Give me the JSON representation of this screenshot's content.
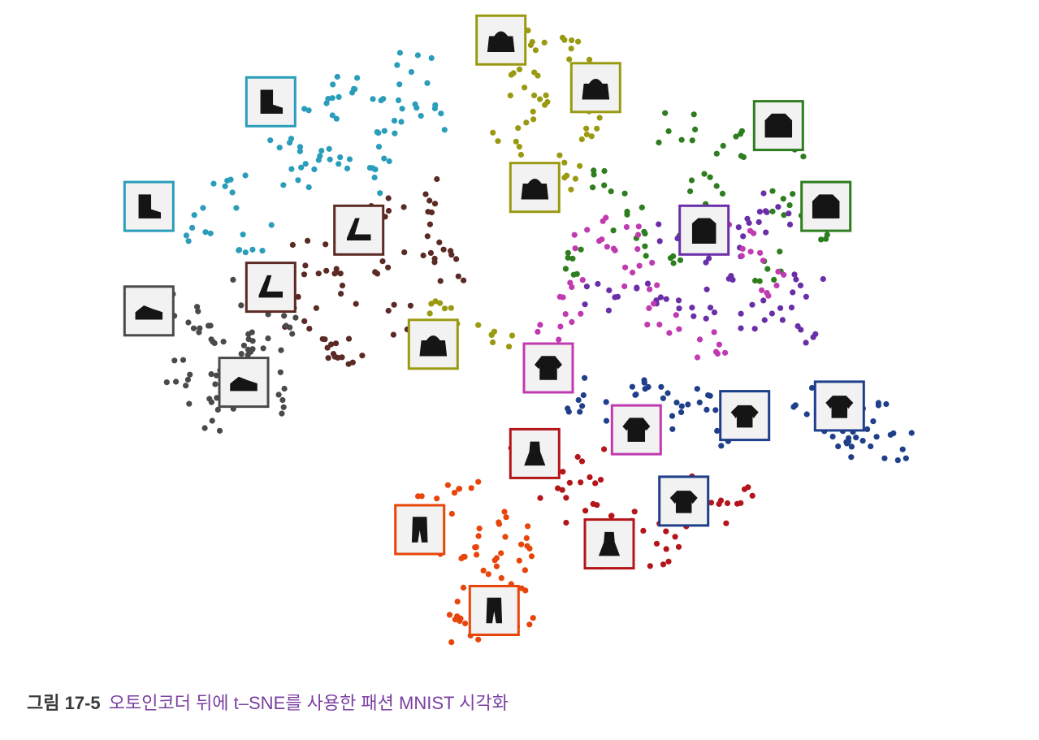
{
  "caption": {
    "figure_number": "그림 17-5",
    "text": "오토인코더 뒤에 t–SNE를 사용한 패션 MNIST 시각화"
  },
  "chart_data": {
    "type": "scatter",
    "title": "",
    "xlabel": "",
    "ylabel": "",
    "grid": false,
    "axes_visible": false,
    "series": [
      {
        "name": "",
        "icon": "ankle-boot-icon",
        "color": "#2a9dbb",
        "points": [
          [
            3.3,
            10.5
          ],
          [
            2.4,
            9.4
          ],
          [
            3.9,
            10.1
          ],
          [
            1.6,
            8.3
          ],
          [
            3.0,
            9.0
          ],
          [
            2.6,
            8.7
          ],
          [
            4.3,
            10.9
          ],
          [
            3.6,
            8.6
          ],
          [
            2.0,
            7.4
          ],
          [
            1.2,
            7.6
          ],
          [
            2.9,
            10.2
          ],
          [
            4.5,
            10.0
          ],
          [
            3.8,
            9.3
          ]
        ],
        "thumbnails": [
          [
            2.2,
            10.2
          ],
          [
            0.4,
            8.0
          ]
        ]
      },
      {
        "name": "",
        "icon": "sandal-icon",
        "color": "#5b2a24",
        "points": [
          [
            3.8,
            7.8
          ],
          [
            4.4,
            8.2
          ],
          [
            3.4,
            6.3
          ],
          [
            2.6,
            5.8
          ],
          [
            3.9,
            6.7
          ],
          [
            4.6,
            7.3
          ],
          [
            3.0,
            5.2
          ],
          [
            4.1,
            5.6
          ],
          [
            3.6,
            7.3
          ],
          [
            2.8,
            6.9
          ],
          [
            4.8,
            6.6
          ],
          [
            3.3,
            4.9
          ]
        ],
        "thumbnails": [
          [
            3.5,
            7.5
          ],
          [
            2.2,
            6.3
          ]
        ]
      },
      {
        "name": "",
        "icon": "sneaker-icon",
        "color": "#4a4a4a",
        "points": [
          [
            1.7,
            5.0
          ],
          [
            1.2,
            4.2
          ],
          [
            2.1,
            4.8
          ],
          [
            1.0,
            5.8
          ],
          [
            2.4,
            5.4
          ],
          [
            1.5,
            3.6
          ],
          [
            1.9,
            6.2
          ],
          [
            0.8,
            4.6
          ],
          [
            2.2,
            3.9
          ],
          [
            1.3,
            5.4
          ]
        ],
        "thumbnails": [
          [
            0.4,
            5.8
          ],
          [
            1.8,
            4.3
          ]
        ]
      },
      {
        "name": "",
        "icon": "bag-icon",
        "color": "#9a9a12",
        "points": [
          [
            6.0,
            11.5
          ],
          [
            6.7,
            11.2
          ],
          [
            6.3,
            10.1
          ],
          [
            6.8,
            9.7
          ],
          [
            5.7,
            9.4
          ],
          [
            5.9,
            8.4
          ],
          [
            6.5,
            8.7
          ],
          [
            4.8,
            5.8
          ],
          [
            5.5,
            5.4
          ],
          [
            6.0,
            10.6
          ]
        ],
        "thumbnails": [
          [
            5.6,
            11.5
          ],
          [
            7.0,
            10.5
          ],
          [
            6.1,
            8.4
          ],
          [
            4.6,
            5.1
          ]
        ]
      },
      {
        "name": "",
        "icon": "pullover-icon",
        "color": "#2e7d1e",
        "points": [
          [
            8.2,
            9.6
          ],
          [
            9.0,
            9.2
          ],
          [
            9.8,
            8.2
          ],
          [
            8.6,
            8.3
          ],
          [
            7.5,
            7.6
          ],
          [
            6.8,
            6.7
          ],
          [
            10.3,
            7.6
          ],
          [
            9.5,
            6.8
          ],
          [
            8.0,
            7.0
          ],
          [
            7.2,
            8.6
          ],
          [
            9.9,
            9.3
          ]
        ],
        "thumbnails": [
          [
            9.7,
            9.7
          ],
          [
            10.4,
            8.0
          ]
        ]
      },
      {
        "name": "",
        "icon": "coat-icon",
        "color": "#6a2fa8",
        "points": [
          [
            9.3,
            7.5
          ],
          [
            8.9,
            6.6
          ],
          [
            10.1,
            6.2
          ],
          [
            7.8,
            6.2
          ],
          [
            8.5,
            5.9
          ],
          [
            9.7,
            7.9
          ],
          [
            7.1,
            6.0
          ],
          [
            10.0,
            5.5
          ],
          [
            8.2,
            7.4
          ],
          [
            9.4,
            5.7
          ]
        ],
        "thumbnails": [
          [
            8.6,
            7.5
          ]
        ]
      },
      {
        "name": "",
        "icon": "shirt-icon",
        "color": "#c03ab0",
        "points": [
          [
            7.4,
            7.2
          ],
          [
            6.6,
            6.1
          ],
          [
            8.0,
            5.6
          ],
          [
            6.9,
            7.4
          ],
          [
            9.2,
            7.3
          ],
          [
            8.7,
            5.1
          ],
          [
            7.7,
            6.5
          ],
          [
            6.4,
            5.3
          ],
          [
            9.6,
            6.5
          ]
        ],
        "thumbnails": [
          [
            6.3,
            4.6
          ],
          [
            7.6,
            3.3
          ]
        ]
      },
      {
        "name": "",
        "icon": "t-shirt-icon",
        "color": "#1f3f8a",
        "points": [
          [
            10.2,
            3.8
          ],
          [
            10.6,
            3.3
          ],
          [
            11.2,
            3.5
          ],
          [
            7.4,
            3.8
          ],
          [
            8.0,
            3.6
          ],
          [
            7.8,
            4.2
          ],
          [
            9.0,
            3.2
          ],
          [
            6.8,
            4.0
          ],
          [
            10.8,
            2.9
          ],
          [
            11.4,
            3.0
          ],
          [
            8.6,
            4.1
          ]
        ],
        "thumbnails": [
          [
            10.6,
            3.8
          ],
          [
            9.2,
            3.6
          ],
          [
            8.3,
            1.8
          ]
        ]
      },
      {
        "name": "",
        "icon": "dress-icon",
        "color": "#b3151a",
        "points": [
          [
            6.8,
            1.5
          ],
          [
            7.5,
            1.2
          ],
          [
            8.0,
            0.8
          ],
          [
            6.4,
            2.1
          ],
          [
            7.1,
            0.7
          ],
          [
            8.6,
            2.1
          ],
          [
            9.2,
            1.7
          ],
          [
            6.0,
            3.1
          ],
          [
            8.2,
            1.4
          ],
          [
            7.0,
            2.5
          ]
        ],
        "thumbnails": [
          [
            6.1,
            2.8
          ],
          [
            7.2,
            0.9
          ]
        ]
      },
      {
        "name": "",
        "icon": "trouser-icon",
        "color": "#e8450a",
        "points": [
          [
            5.0,
            1.9
          ],
          [
            5.5,
            1.4
          ],
          [
            4.8,
            0.9
          ],
          [
            5.7,
            0.3
          ],
          [
            5.2,
            -0.4
          ],
          [
            5.9,
            -0.7
          ],
          [
            4.6,
            1.6
          ],
          [
            5.4,
            0.6
          ],
          [
            5.1,
            -0.9
          ],
          [
            5.8,
            1.0
          ]
        ],
        "thumbnails": [
          [
            4.4,
            1.2
          ],
          [
            5.5,
            -0.5
          ]
        ]
      }
    ]
  }
}
